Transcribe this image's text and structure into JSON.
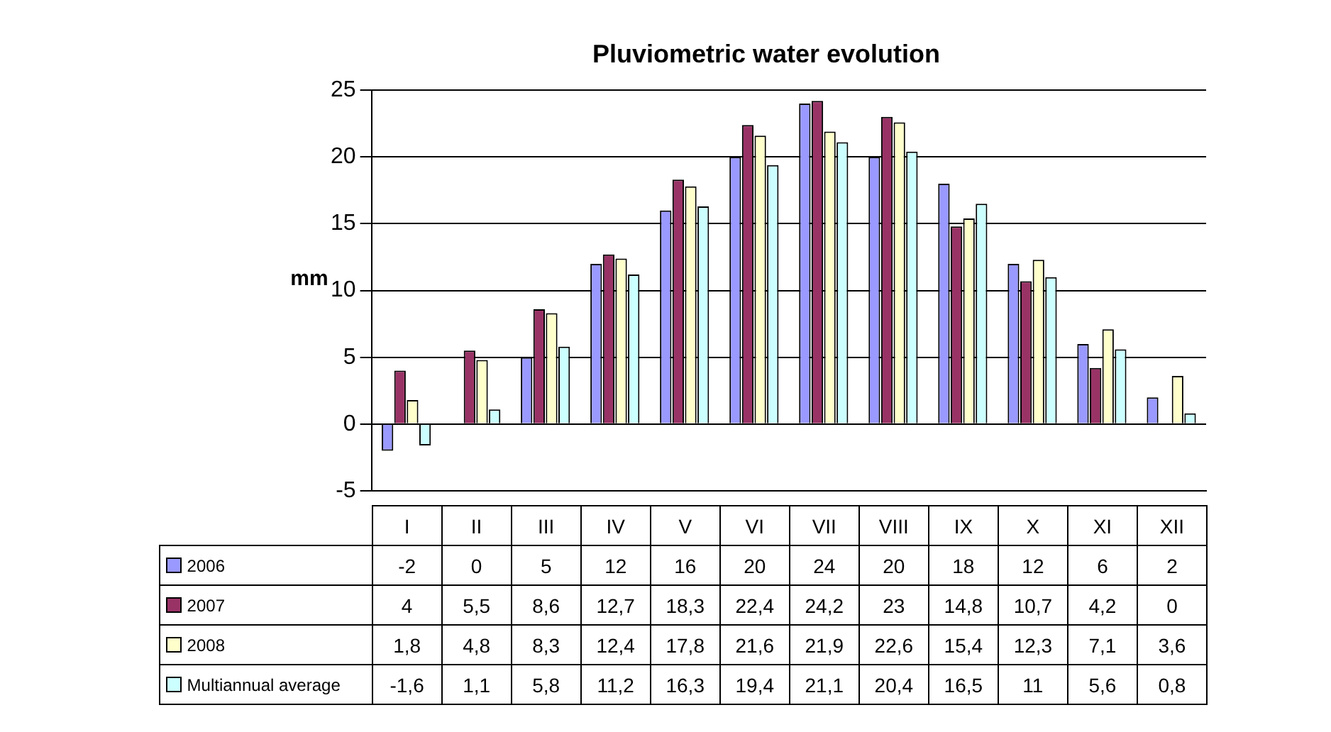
{
  "chart_data": {
    "type": "bar",
    "title": "Pluviometric water evolution",
    "ylabel": "mm",
    "categories": [
      "I",
      "II",
      "III",
      "IV",
      "V",
      "VI",
      "VII",
      "VIII",
      "IX",
      "X",
      "XI",
      "XII"
    ],
    "series": [
      {
        "name": "2006",
        "color": "#9999ff",
        "values": [
          -2,
          0,
          5,
          12,
          16,
          20,
          24,
          20,
          18,
          12,
          6,
          2
        ],
        "value_labels": [
          "-2",
          "0",
          "5",
          "12",
          "16",
          "20",
          "24",
          "20",
          "18",
          "12",
          "6",
          "2"
        ]
      },
      {
        "name": "2007",
        "color": "#993366",
        "values": [
          4,
          5.5,
          8.6,
          12.7,
          18.3,
          22.4,
          24.2,
          23,
          14.8,
          10.7,
          4.2,
          0
        ],
        "value_labels": [
          "4",
          "5,5",
          "8,6",
          "12,7",
          "18,3",
          "22,4",
          "24,2",
          "23",
          "14,8",
          "10,7",
          "4,2",
          "0"
        ]
      },
      {
        "name": "2008",
        "color": "#ffffcc",
        "values": [
          1.8,
          4.8,
          8.3,
          12.4,
          17.8,
          21.6,
          21.9,
          22.6,
          15.4,
          12.3,
          7.1,
          3.6
        ],
        "value_labels": [
          "1,8",
          "4,8",
          "8,3",
          "12,4",
          "17,8",
          "21,6",
          "21,9",
          "22,6",
          "15,4",
          "12,3",
          "7,1",
          "3,6"
        ]
      },
      {
        "name": "Multiannual average",
        "color": "#ccffff",
        "values": [
          -1.6,
          1.1,
          5.8,
          11.2,
          16.3,
          19.4,
          21.1,
          20.4,
          16.5,
          11,
          5.6,
          0.8
        ],
        "value_labels": [
          "-1,6",
          "1,1",
          "5,8",
          "11,2",
          "16,3",
          "19,4",
          "21,1",
          "20,4",
          "16,5",
          "11",
          "5,6",
          "0,8"
        ]
      }
    ],
    "ylim": [
      -5,
      25
    ],
    "yticks": [
      -5,
      0,
      5,
      10,
      15,
      20,
      25
    ],
    "grid": "y",
    "legend": "bottom left"
  }
}
